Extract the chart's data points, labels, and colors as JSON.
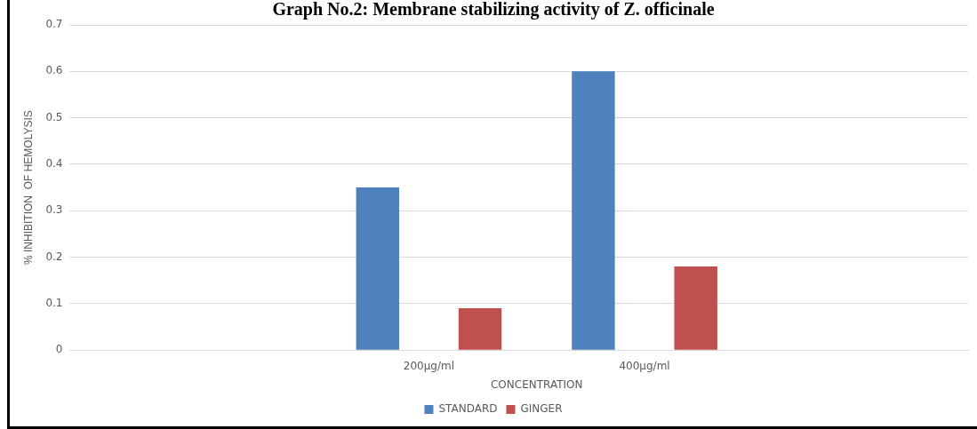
{
  "chart_data": {
    "type": "bar",
    "title": "Graph No.2: Membrane stabilizing activity of Z. officinale",
    "xlabel": "CONCENTRATION",
    "ylabel": "% INHIBITION  OF HEMOLYSIS",
    "categories": [
      null,
      "200µg/ml",
      "400µg/ml",
      null
    ],
    "series": [
      {
        "name": "STANDARD",
        "color": "#4f81bd",
        "values": [
          null,
          0.35,
          0.6,
          null
        ]
      },
      {
        "name": "GINGER",
        "color": "#c0504d",
        "values": [
          null,
          0.09,
          0.18,
          null
        ]
      }
    ],
    "ylim": [
      0,
      0.7
    ],
    "yticks": [
      0,
      0.1,
      0.2,
      0.3,
      0.4,
      0.5,
      0.6,
      0.7
    ],
    "grid": "y",
    "legend": "bottom"
  }
}
